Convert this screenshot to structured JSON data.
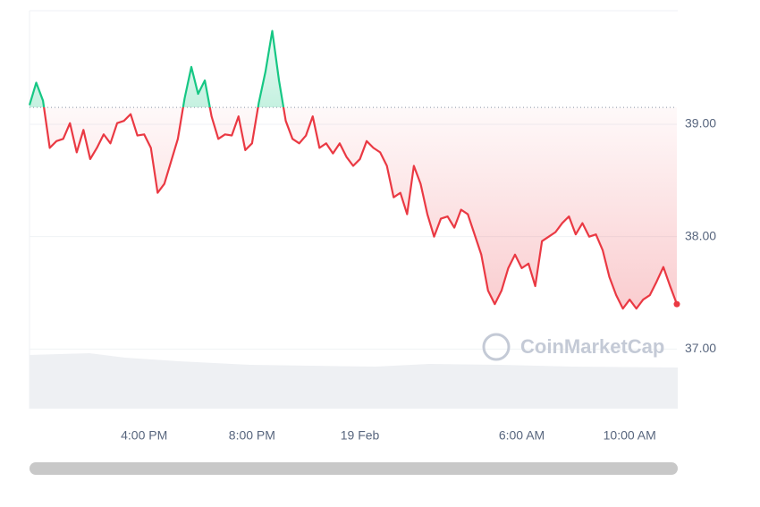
{
  "chart_data": {
    "type": "line",
    "watermark": "CoinMarketCap",
    "baseline": 39.15,
    "colors": {
      "above": "#16c784",
      "below": "#ea3943"
    },
    "grid": true,
    "ylim": [
      36.47,
      40.01
    ],
    "yticks": [
      {
        "value": 37,
        "label": "37.00"
      },
      {
        "value": 38,
        "label": "38.00"
      },
      {
        "value": 39,
        "label": "39.00"
      }
    ],
    "categories": [
      null,
      null,
      null,
      null,
      null,
      null,
      null,
      null,
      null,
      null,
      null,
      null,
      null,
      null,
      null,
      null,
      null,
      "4:00 PM",
      null,
      null,
      null,
      null,
      null,
      null,
      null,
      null,
      null,
      null,
      null,
      null,
      null,
      null,
      null,
      "8:00 PM",
      null,
      null,
      null,
      null,
      null,
      null,
      null,
      null,
      null,
      null,
      null,
      null,
      null,
      null,
      null,
      "19 Feb",
      null,
      null,
      null,
      null,
      null,
      null,
      null,
      null,
      null,
      null,
      null,
      null,
      null,
      null,
      null,
      null,
      null,
      null,
      null,
      null,
      null,
      null,
      null,
      "6:00 AM",
      null,
      null,
      null,
      null,
      null,
      null,
      null,
      null,
      null,
      null,
      null,
      null,
      null,
      null,
      null,
      "10:00 AM",
      null,
      null,
      null,
      null,
      null,
      null,
      null
    ],
    "values": [
      39.17,
      39.37,
      39.21,
      38.79,
      38.85,
      38.87,
      39.01,
      38.75,
      38.95,
      38.69,
      38.79,
      38.91,
      38.83,
      39.01,
      39.03,
      39.09,
      38.9,
      38.91,
      38.79,
      38.39,
      38.47,
      38.67,
      38.87,
      39.23,
      39.51,
      39.27,
      39.39,
      39.07,
      38.87,
      38.91,
      38.9,
      39.07,
      38.77,
      38.83,
      39.19,
      39.47,
      39.83,
      39.39,
      39.03,
      38.87,
      38.83,
      38.9,
      39.07,
      38.79,
      38.83,
      38.74,
      38.83,
      38.71,
      38.63,
      38.69,
      38.85,
      38.79,
      38.75,
      38.63,
      38.35,
      38.39,
      38.2,
      38.63,
      38.47,
      38.2,
      38.0,
      38.16,
      38.18,
      38.08,
      38.24,
      38.2,
      38.02,
      37.84,
      37.52,
      37.4,
      37.52,
      37.72,
      37.84,
      37.72,
      37.76,
      37.56,
      37.96,
      38.0,
      38.04,
      38.12,
      38.18,
      38.02,
      38.12,
      38.0,
      38.02,
      37.88,
      37.64,
      37.48,
      37.36,
      37.44,
      37.36,
      37.44,
      37.48,
      37.6,
      37.73,
      37.56,
      37.4
    ]
  }
}
